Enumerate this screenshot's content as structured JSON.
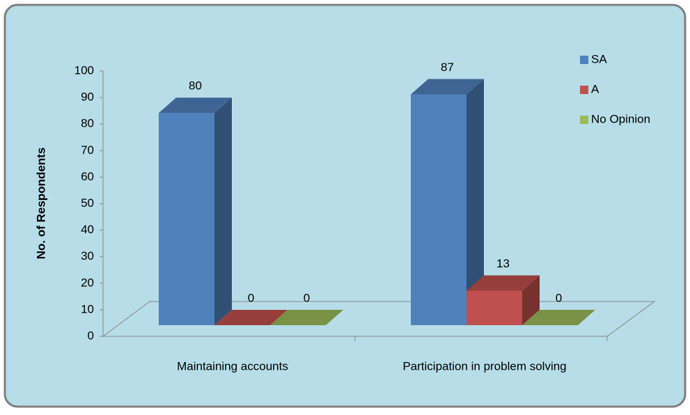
{
  "chart_data": {
    "type": "bar3d",
    "y_label": "No. of Respondents",
    "categories": [
      "Maintaining accounts",
      "Participation in problem solving"
    ],
    "series": [
      {
        "name": "SA",
        "color": "#4f81bd",
        "values": [
          80,
          87
        ]
      },
      {
        "name": "A",
        "color": "#c0504d",
        "values": [
          0,
          13
        ]
      },
      {
        "name": "No Opinion",
        "color": "#9bbb59",
        "values": [
          0,
          0
        ]
      }
    ],
    "ylim": [
      0,
      100
    ],
    "yticks": [
      0,
      10,
      20,
      30,
      40,
      50,
      60,
      70,
      80,
      90,
      100
    ],
    "legend": "right"
  }
}
